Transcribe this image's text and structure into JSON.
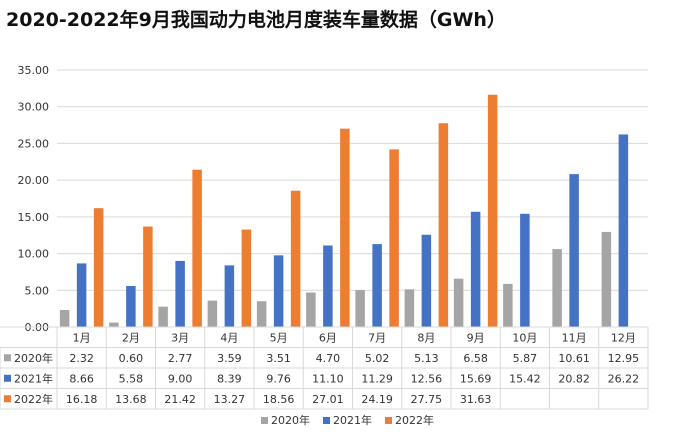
{
  "colors": {
    "s2020": "#a5a5a5",
    "s2021": "#4472c4",
    "s2022": "#ed7d31",
    "grid": "#d9d9d9",
    "text": "#333333",
    "title": "#111111"
  },
  "chart_data": {
    "type": "bar",
    "title": "2020-2022年9月我国动力电池月度装车量数据（GWh）",
    "categories": [
      "1月",
      "2月",
      "3月",
      "4月",
      "5月",
      "6月",
      "7月",
      "8月",
      "9月",
      "10月",
      "11月",
      "12月"
    ],
    "series": [
      {
        "name": "2020年",
        "color_key": "s2020",
        "values": [
          2.32,
          0.6,
          2.77,
          3.59,
          3.51,
          4.7,
          5.02,
          5.13,
          6.58,
          5.87,
          10.61,
          12.95
        ]
      },
      {
        "name": "2021年",
        "color_key": "s2021",
        "values": [
          8.66,
          5.58,
          9.0,
          8.39,
          9.76,
          11.1,
          11.29,
          12.56,
          15.69,
          15.42,
          20.82,
          26.22
        ]
      },
      {
        "name": "2022年",
        "color_key": "s2022",
        "values": [
          16.18,
          13.68,
          21.42,
          13.27,
          18.56,
          27.01,
          24.19,
          27.75,
          31.63,
          null,
          null,
          null
        ]
      }
    ],
    "ylim": [
      0,
      35
    ],
    "yticks": [
      0,
      5,
      10,
      15,
      20,
      25,
      30,
      35
    ],
    "ytick_labels": [
      "0.00",
      "5.00",
      "10.00",
      "15.00",
      "20.00",
      "25.00",
      "30.00",
      "35.00"
    ],
    "grid": true,
    "legend_position": "bottom",
    "data_table": true
  }
}
